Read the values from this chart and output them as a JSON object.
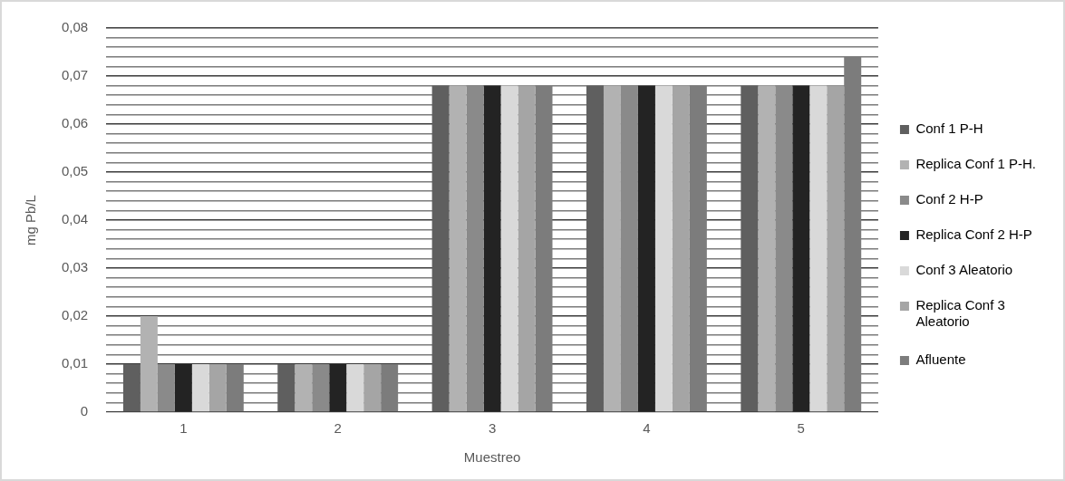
{
  "chart_data": {
    "type": "bar",
    "xlabel": "Muestreo",
    "ylabel": "mg Pb/L",
    "categories": [
      "1",
      "2",
      "3",
      "4",
      "5"
    ],
    "series": [
      {
        "name": "Conf 1 P-H",
        "color": "#5f5f5f",
        "values": [
          0.01,
          0.01,
          0.068,
          0.068,
          0.068
        ]
      },
      {
        "name": "Replica Conf 1 P-H.",
        "color": "#b2b2b2",
        "values": [
          0.02,
          0.01,
          0.068,
          0.068,
          0.068
        ]
      },
      {
        "name": "Conf 2 H-P",
        "color": "#8a8a8a",
        "values": [
          0.01,
          0.01,
          0.068,
          0.068,
          0.068
        ]
      },
      {
        "name": "Replica Conf 2 H-P",
        "color": "#232323",
        "values": [
          0.01,
          0.01,
          0.068,
          0.068,
          0.068
        ]
      },
      {
        "name": "Conf 3 Aleatorio",
        "color": "#d9d9d9",
        "values": [
          0.01,
          0.01,
          0.068,
          0.068,
          0.068
        ]
      },
      {
        "name": "Replica Conf 3 Aleatorio",
        "color": "#a5a5a5",
        "values": [
          0.01,
          0.01,
          0.068,
          0.068,
          0.068
        ]
      },
      {
        "name": "Afluente",
        "color": "#7c7c7c",
        "values": [
          0.01,
          0.01,
          0.068,
          0.068,
          0.074
        ]
      }
    ],
    "ylim": [
      0,
      0.08
    ],
    "yticks": [
      0,
      {
        "value": 0.002,
        "label": null
      },
      {
        "value": 0.004,
        "label": null
      },
      {
        "value": 0.006,
        "label": null
      },
      {
        "value": 0.008,
        "label": null
      },
      {
        "value": 0.01,
        "label": "0,01"
      },
      {
        "value": 0.012,
        "label": null
      },
      {
        "value": 0.014,
        "label": null
      },
      {
        "value": 0.016,
        "label": null
      },
      {
        "value": 0.018,
        "label": null
      },
      {
        "value": 0.02,
        "label": "0,02"
      },
      {
        "value": 0.022,
        "label": null
      },
      {
        "value": 0.024,
        "label": null
      },
      {
        "value": 0.026,
        "label": null
      },
      {
        "value": 0.028,
        "label": null
      },
      {
        "value": 0.03,
        "label": "0,03"
      },
      {
        "value": 0.032,
        "label": null
      },
      {
        "value": 0.034,
        "label": null
      },
      {
        "value": 0.036,
        "label": null
      },
      {
        "value": 0.038,
        "label": null
      },
      {
        "value": 0.04,
        "label": "0,04"
      },
      {
        "value": 0.042,
        "label": null
      },
      {
        "value": 0.044,
        "label": null
      },
      {
        "value": 0.046,
        "label": null
      },
      {
        "value": 0.048,
        "label": null
      },
      {
        "value": 0.05,
        "label": "0,05"
      },
      {
        "value": 0.052,
        "label": null
      },
      {
        "value": 0.054,
        "label": null
      },
      {
        "value": 0.056,
        "label": null
      },
      {
        "value": 0.058,
        "label": null
      },
      {
        "value": 0.06,
        "label": "0,06"
      },
      {
        "value": 0.062,
        "label": null
      },
      {
        "value": 0.064,
        "label": null
      },
      {
        "value": 0.066,
        "label": null
      },
      {
        "value": 0.068,
        "label": null
      },
      {
        "value": 0.07,
        "label": "0,07"
      },
      {
        "value": 0.072,
        "label": null
      },
      {
        "value": 0.074,
        "label": null
      },
      {
        "value": 0.076,
        "label": null
      },
      {
        "value": 0.078,
        "label": null
      },
      {
        "value": 0.08,
        "label": "0,08"
      }
    ],
    "grid": "y",
    "legend": "right"
  }
}
